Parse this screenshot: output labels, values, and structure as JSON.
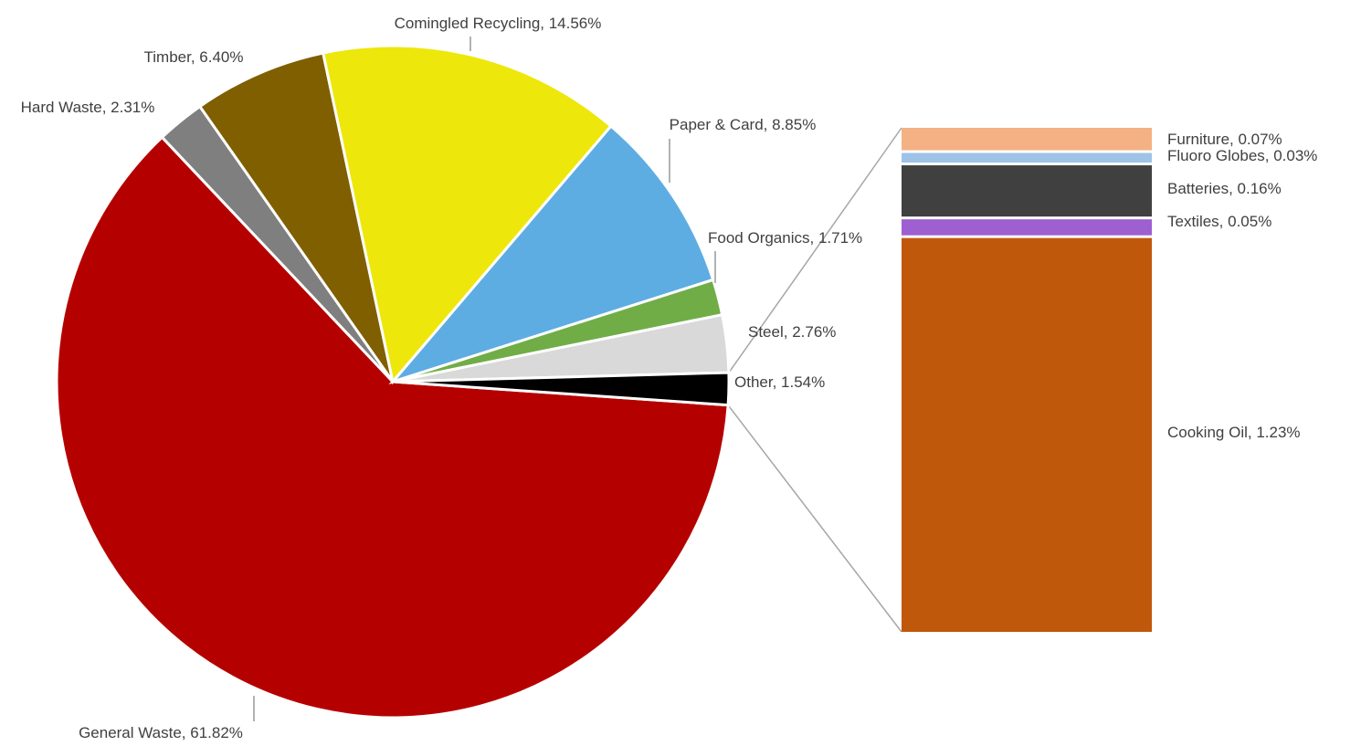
{
  "chart_data": {
    "type": "pie",
    "subtype": "bar-of-pie",
    "pie": {
      "slices": [
        {
          "label": "General Waste, 61.82%",
          "name": "General Waste",
          "value": 61.82,
          "color": "#b50000",
          "label_position": "bottom-left"
        },
        {
          "label": "Hard Waste, 2.31%",
          "name": "Hard Waste",
          "value": 2.31,
          "color": "#7f7f7f",
          "label_position": "top-left"
        },
        {
          "label": "Timber, 6.40%",
          "name": "Timber",
          "value": 6.4,
          "color": "#7f5f00",
          "label_position": "top-left"
        },
        {
          "label": "Comingled Recycling, 14.56%",
          "name": "Comingled Recycling",
          "value": 14.56,
          "color": "#ede70c",
          "label_position": "top"
        },
        {
          "label": "Paper & Card, 8.85%",
          "name": "Paper & Card",
          "value": 8.85,
          "color": "#5dade2",
          "label_position": "top-right"
        },
        {
          "label": "Food Organics, 1.71%",
          "name": "Food Organics",
          "value": 1.71,
          "color": "#70ad47",
          "label_position": "right"
        },
        {
          "label": "Steel, 2.76%",
          "name": "Steel",
          "value": 2.76,
          "color": "#d9d9d9",
          "label_position": "right"
        },
        {
          "label": "Other, 1.54%",
          "name": "Other",
          "value": 1.54,
          "color": "#000000",
          "label_position": "right"
        }
      ]
    },
    "bar": {
      "breakdown_of": "Other",
      "segments": [
        {
          "label": "Furniture, 0.07%",
          "name": "Furniture",
          "value": 0.07,
          "color": "#f4b183"
        },
        {
          "label": "Fluoro Globes, 0.03%",
          "name": "Fluoro Globes",
          "value": 0.03,
          "color": "#9dc3e6"
        },
        {
          "label": "Batteries, 0.16%",
          "name": "Batteries",
          "value": 0.16,
          "color": "#404040"
        },
        {
          "label": "Textiles, 0.05%",
          "name": "Textiles",
          "value": 0.05,
          "color": "#9e5fd0"
        },
        {
          "label": "Cooking Oil, 1.23%",
          "name": "Cooking Oil",
          "value": 1.23,
          "color": "#c0580b"
        }
      ]
    },
    "legend": "none",
    "grid": false
  }
}
